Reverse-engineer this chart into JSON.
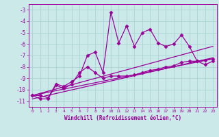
{
  "xlabel": "Windchill (Refroidissement éolien,°C)",
  "background_color": "#cce9e9",
  "grid_color": "#aad4d4",
  "line_color": "#990099",
  "xlim": [
    -0.5,
    23.5
  ],
  "ylim": [
    -11.5,
    -2.5
  ],
  "yticks": [
    -11,
    -10,
    -9,
    -8,
    -7,
    -6,
    -5,
    -4,
    -3
  ],
  "xticks": [
    0,
    1,
    2,
    3,
    4,
    5,
    6,
    7,
    8,
    9,
    10,
    11,
    12,
    13,
    14,
    15,
    16,
    17,
    18,
    19,
    20,
    21,
    22,
    23
  ],
  "series": [
    {
      "x": [
        0,
        1,
        2,
        3,
        4,
        5,
        6,
        7,
        8,
        9,
        10,
        11,
        12,
        13,
        14,
        15,
        16,
        17,
        18,
        19,
        20,
        21,
        22,
        23
      ],
      "y": [
        -10.5,
        -10.5,
        -10.7,
        -9.5,
        -9.7,
        -9.3,
        -8.8,
        -7.0,
        -6.7,
        -8.5,
        -3.2,
        -5.9,
        -4.4,
        -6.2,
        -5.0,
        -4.7,
        -5.9,
        -6.2,
        -6.0,
        -5.2,
        -6.2,
        -7.5,
        -7.8,
        -7.5
      ],
      "marker": "D",
      "markersize": 2.5,
      "linewidth": 0.9
    },
    {
      "x": [
        0,
        1,
        2,
        3,
        4,
        5,
        6,
        7,
        8,
        9,
        10,
        11,
        12,
        13,
        14,
        15,
        16,
        17,
        18,
        19,
        20,
        21,
        22,
        23
      ],
      "y": [
        -10.5,
        -10.8,
        -10.8,
        -9.6,
        -9.9,
        -9.5,
        -8.5,
        -8.0,
        -8.5,
        -9.0,
        -8.8,
        -8.8,
        -8.8,
        -8.7,
        -8.5,
        -8.3,
        -8.2,
        -8.0,
        -7.9,
        -7.6,
        -7.5,
        -7.5,
        -7.4,
        -7.3
      ],
      "marker": "D",
      "markersize": 2.5,
      "linewidth": 0.9
    },
    {
      "x": [
        0,
        23
      ],
      "y": [
        -10.5,
        -6.2
      ],
      "marker": null,
      "markersize": 0,
      "linewidth": 0.9
    },
    {
      "x": [
        0,
        23
      ],
      "y": [
        -10.8,
        -7.2
      ],
      "marker": null,
      "markersize": 0,
      "linewidth": 0.9
    },
    {
      "x": [
        0,
        23
      ],
      "y": [
        -10.5,
        -7.3
      ],
      "marker": null,
      "markersize": 0,
      "linewidth": 0.9
    }
  ]
}
